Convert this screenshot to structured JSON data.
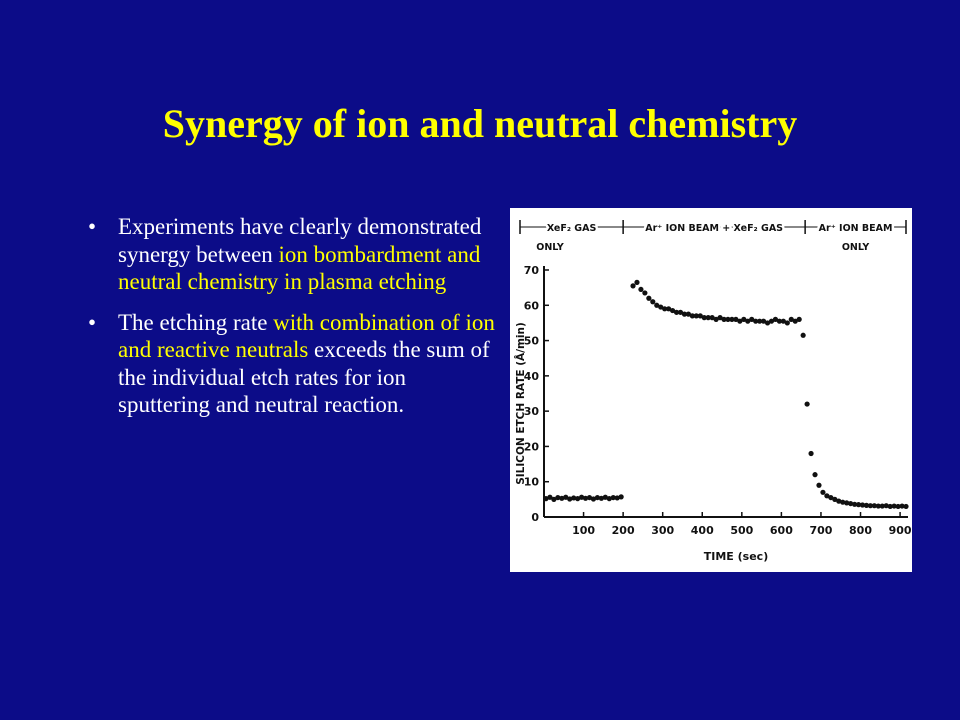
{
  "slide": {
    "title": "Synergy of ion and neutral chemistry",
    "bullets": [
      {
        "segments": [
          {
            "text": "Experiments  have clearly demonstrated synergy between ",
            "highlight": false
          },
          {
            "text": "ion bombardment and neutral chemistry  in plasma etching",
            "highlight": true
          }
        ]
      },
      {
        "segments": [
          {
            "text": "The etching rate ",
            "highlight": false
          },
          {
            "text": "with combination of ion and reactive neutrals ",
            "highlight": true
          },
          {
            "text": " exceeds the sum of the individual etch rates for ion sputtering and neutral reaction.",
            "highlight": false
          }
        ]
      }
    ],
    "colors": {
      "background": "#0c0c88",
      "text": "#ffffff",
      "highlight": "#ffff00"
    }
  },
  "chart_data": {
    "type": "scatter",
    "title": "",
    "xlabel": "TIME (sec)",
    "ylabel": "SILICON ETCH RATE (Å/min)",
    "xlim": [
      0,
      920
    ],
    "ylim": [
      0,
      70
    ],
    "xticks": [
      100,
      200,
      300,
      400,
      500,
      600,
      700,
      800,
      900
    ],
    "yticks": [
      0,
      10,
      20,
      30,
      40,
      50,
      60,
      70
    ],
    "phases": [
      {
        "label": "XeF₂ GAS",
        "sublabel": "ONLY",
        "range": [
          0,
          200
        ]
      },
      {
        "label": "Ar⁺ ION BEAM + XeF₂ GAS",
        "sublabel": "",
        "range": [
          200,
          660
        ]
      },
      {
        "label": "Ar⁺ ION BEAM",
        "sublabel": "ONLY",
        "range": [
          660,
          920
        ]
      }
    ],
    "series": [
      {
        "points": [
          [
            5,
            5.2
          ],
          [
            15,
            5.6
          ],
          [
            25,
            5.0
          ],
          [
            35,
            5.5
          ],
          [
            45,
            5.3
          ],
          [
            55,
            5.6
          ],
          [
            65,
            5.1
          ],
          [
            75,
            5.4
          ],
          [
            85,
            5.2
          ],
          [
            95,
            5.6
          ],
          [
            105,
            5.3
          ],
          [
            115,
            5.5
          ],
          [
            125,
            5.1
          ],
          [
            135,
            5.5
          ],
          [
            145,
            5.3
          ],
          [
            155,
            5.6
          ],
          [
            165,
            5.2
          ],
          [
            175,
            5.5
          ],
          [
            185,
            5.4
          ],
          [
            195,
            5.7
          ],
          [
            225,
            65.5
          ],
          [
            235,
            66.5
          ],
          [
            245,
            64.5
          ],
          [
            255,
            63.5
          ],
          [
            265,
            62
          ],
          [
            275,
            61
          ],
          [
            285,
            60
          ],
          [
            295,
            59.5
          ],
          [
            305,
            59
          ],
          [
            315,
            59
          ],
          [
            325,
            58.5
          ],
          [
            335,
            58
          ],
          [
            345,
            58
          ],
          [
            355,
            57.5
          ],
          [
            365,
            57.5
          ],
          [
            375,
            57
          ],
          [
            385,
            57
          ],
          [
            395,
            57
          ],
          [
            405,
            56.5
          ],
          [
            415,
            56.5
          ],
          [
            425,
            56.5
          ],
          [
            435,
            56
          ],
          [
            445,
            56.5
          ],
          [
            455,
            56
          ],
          [
            465,
            56
          ],
          [
            475,
            56
          ],
          [
            485,
            56
          ],
          [
            495,
            55.5
          ],
          [
            505,
            56
          ],
          [
            515,
            55.5
          ],
          [
            525,
            56
          ],
          [
            535,
            55.5
          ],
          [
            545,
            55.5
          ],
          [
            555,
            55.5
          ],
          [
            565,
            55
          ],
          [
            575,
            55.5
          ],
          [
            585,
            56
          ],
          [
            595,
            55.5
          ],
          [
            605,
            55.5
          ],
          [
            615,
            55
          ],
          [
            625,
            56
          ],
          [
            635,
            55.5
          ],
          [
            645,
            56
          ],
          [
            655,
            51.5
          ],
          [
            665,
            32
          ],
          [
            675,
            18
          ],
          [
            685,
            12
          ],
          [
            695,
            9
          ],
          [
            705,
            7
          ],
          [
            715,
            6
          ],
          [
            725,
            5.5
          ],
          [
            735,
            5
          ],
          [
            745,
            4.5
          ],
          [
            755,
            4.2
          ],
          [
            765,
            4
          ],
          [
            775,
            3.8
          ],
          [
            785,
            3.6
          ],
          [
            795,
            3.5
          ],
          [
            805,
            3.4
          ],
          [
            815,
            3.3
          ],
          [
            825,
            3.2
          ],
          [
            835,
            3.2
          ],
          [
            845,
            3.1
          ],
          [
            855,
            3.1
          ],
          [
            865,
            3.2
          ],
          [
            875,
            3.0
          ],
          [
            885,
            3.1
          ],
          [
            895,
            3.0
          ],
          [
            905,
            3.1
          ],
          [
            915,
            3.0
          ]
        ]
      }
    ]
  }
}
